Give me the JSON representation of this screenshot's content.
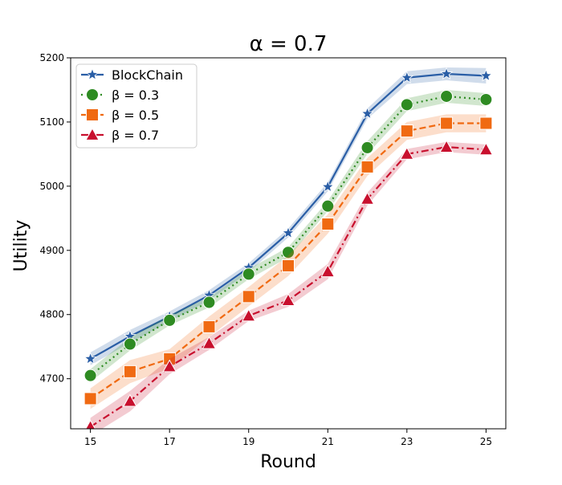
{
  "chart_data": {
    "type": "line",
    "title": "α = 0.7",
    "xlabel": "Round",
    "ylabel": "Utility",
    "x": [
      15,
      16,
      17,
      18,
      19,
      20,
      21,
      22,
      23,
      24,
      25
    ],
    "xticks": [
      "15",
      "17",
      "19",
      "21",
      "23",
      "25"
    ],
    "yticks": [
      "4700",
      "4800",
      "4900",
      "5000",
      "5100",
      "5200"
    ],
    "xlim": [
      14.5,
      25.5
    ],
    "ylim": [
      4622,
      5200
    ],
    "grid": false,
    "legend_position": "top-left",
    "series": [
      {
        "name": "BlockChain",
        "values": [
          4731,
          4766,
          4797,
          4830,
          4873,
          4927,
          4999,
          5113,
          5169,
          5175,
          5172
        ],
        "band": [
          10,
          10,
          8,
          8,
          7,
          7,
          7,
          8,
          10,
          10,
          12
        ],
        "color": "#2a5ea6",
        "marker": "star",
        "dash": "solid"
      },
      {
        "name": "β = 0.3",
        "values": [
          4705,
          4754,
          4791,
          4819,
          4863,
          4897,
          4969,
          5060,
          5127,
          5140,
          5135
        ],
        "band": [
          10,
          10,
          8,
          8,
          8,
          8,
          8,
          10,
          10,
          10,
          10
        ],
        "color": "#2e8b22",
        "marker": "circle",
        "dash": "dotted"
      },
      {
        "name": "β = 0.5",
        "values": [
          4669,
          4711,
          4731,
          4781,
          4828,
          4876,
          4941,
          5030,
          5086,
          5098,
          5098
        ],
        "band": [
          16,
          18,
          15,
          16,
          15,
          16,
          15,
          14,
          14,
          14,
          14
        ],
        "color": "#f06a12",
        "marker": "square",
        "dash": "dashed"
      },
      {
        "name": "β = 0.7",
        "values": [
          4625,
          4665,
          4719,
          4755,
          4798,
          4822,
          4867,
          4980,
          5050,
          5061,
          5057
        ],
        "band": [
          14,
          16,
          12,
          10,
          8,
          10,
          12,
          10,
          8,
          8,
          8
        ],
        "color": "#c8102e",
        "marker": "triangle",
        "dash": "dashdot"
      }
    ]
  }
}
